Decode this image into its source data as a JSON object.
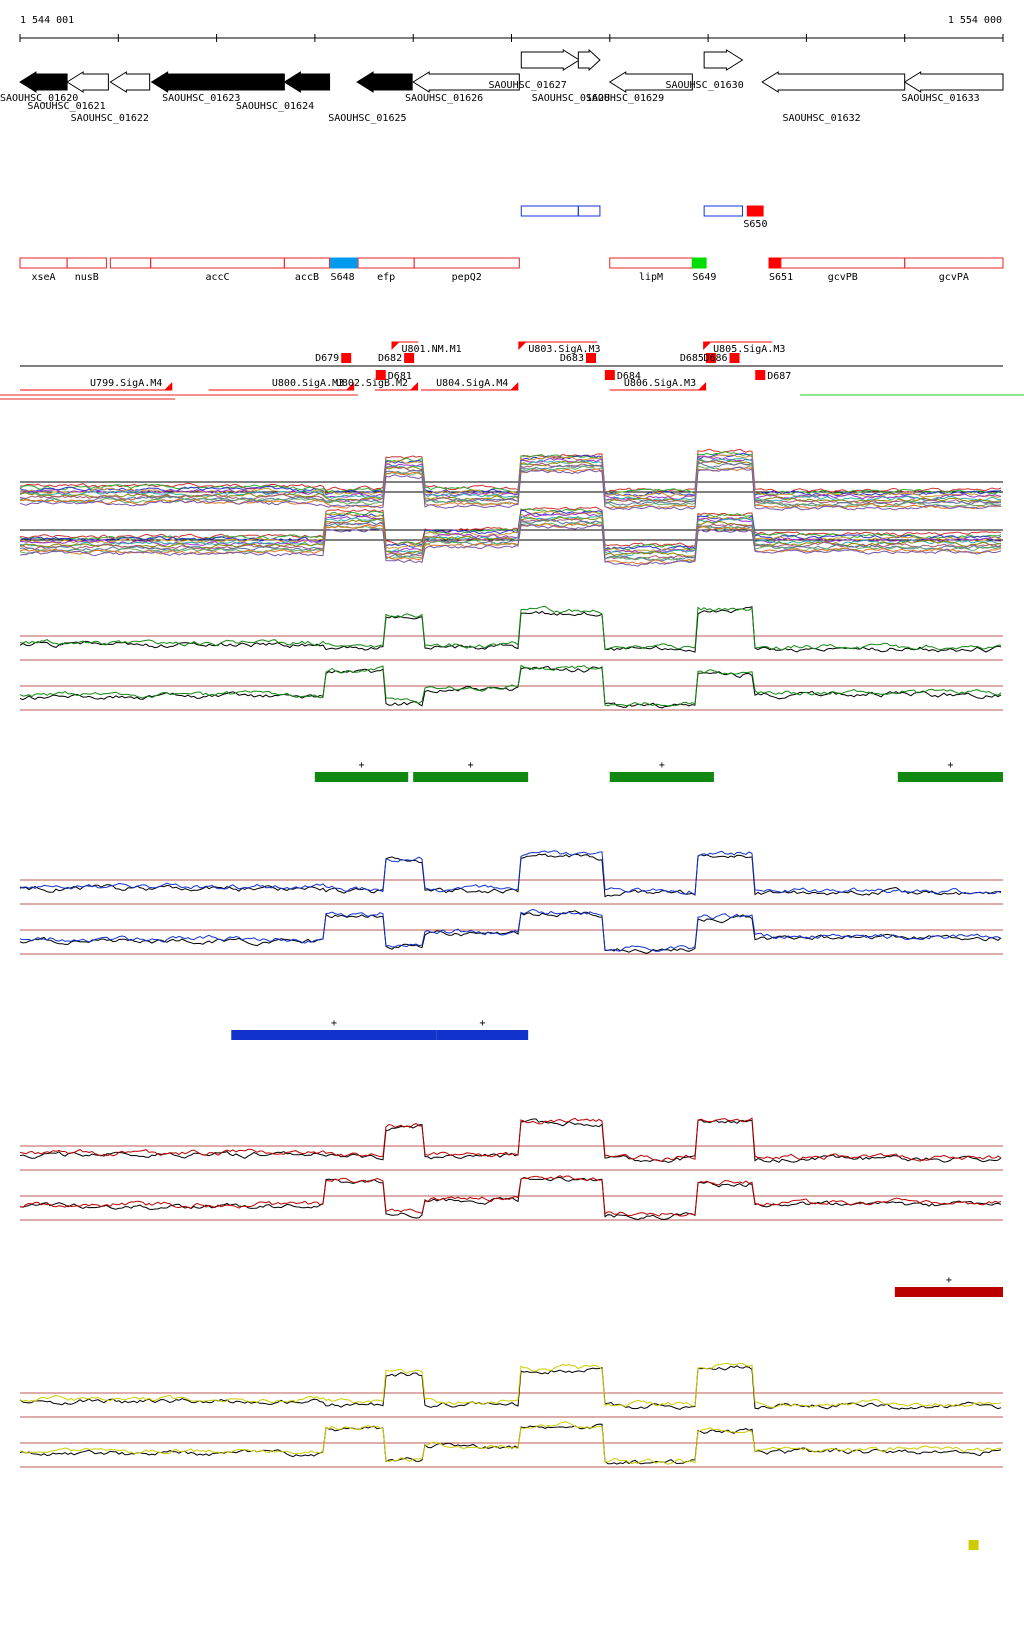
{
  "coordinates": {
    "start_label": "1 544 001",
    "end_label": "1 554 000",
    "range": [
      1544001,
      1554000
    ]
  },
  "colors": {
    "black": "#000000",
    "gene_red": "#ee2222",
    "utr_red": "#ff0000",
    "sRNA_blue": "#0099ee",
    "sRNA_green": "#00dd00",
    "track_blue": "#1133dd",
    "green": "#118811",
    "blue": "#1133cc",
    "red": "#bb0000",
    "yellow": "#cccc00",
    "threshold": "#aa2222"
  },
  "genes": [
    {
      "id": "SAOUHSC_01620",
      "start": 1544001,
      "end": 1544480,
      "strand": "-",
      "filled": true
    },
    {
      "id": "SAOUHSC_01621",
      "start": 1544480,
      "end": 1544900,
      "strand": "-",
      "filled": false
    },
    {
      "id": "SAOUHSC_01622",
      "start": 1544920,
      "end": 1545320,
      "strand": "-",
      "filled": false
    },
    {
      "id": "SAOUHSC_01623",
      "start": 1545340,
      "end": 1546690,
      "strand": "-",
      "filled": true
    },
    {
      "id": "SAOUHSC_01624",
      "start": 1546690,
      "end": 1547150,
      "strand": "-",
      "filled": true
    },
    {
      "id": "SAOUHSC_01625",
      "start": 1547430,
      "end": 1547990,
      "strand": "-",
      "filled": true
    },
    {
      "id": "SAOUHSC_01626",
      "start": 1548000,
      "end": 1549080,
      "strand": "-",
      "filled": false
    },
    {
      "id": "SAOUHSC_01627",
      "start": 1549100,
      "end": 1549690,
      "strand": "+",
      "filled": false
    },
    {
      "id": "SAOUHSC_01628",
      "start": 1549680,
      "end": 1549900,
      "strand": "+",
      "filled": false
    },
    {
      "id": "SAOUHSC_01629",
      "start": 1550000,
      "end": 1550840,
      "strand": "-",
      "filled": false
    },
    {
      "id": "SAOUHSC_01630",
      "start": 1550960,
      "end": 1551350,
      "strand": "+",
      "filled": false
    },
    {
      "id": "SAOUHSC_01632",
      "start": 1551550,
      "end": 1553000,
      "strand": "-",
      "filled": false
    },
    {
      "id": "SAOUHSC_01633",
      "start": 1553000,
      "end": 1554000,
      "strand": "-",
      "filled": false
    }
  ],
  "gene_labels": [
    {
      "text": "SAOUHSC_01620",
      "pos": 1544001,
      "row": 0
    },
    {
      "text": "SAOUHSC_01621",
      "pos": 1544280,
      "row": 1
    },
    {
      "text": "SAOUHSC_01622",
      "pos": 1544720,
      "row": 2
    },
    {
      "text": "SAOUHSC_01623",
      "pos": 1545650,
      "row": 0
    },
    {
      "text": "SAOUHSC_01624",
      "pos": 1546400,
      "row": 1
    },
    {
      "text": "SAOUHSC_01625",
      "pos": 1547340,
      "row": 2
    },
    {
      "text": "SAOUHSC_01626",
      "pos": 1548120,
      "row": 0
    },
    {
      "text": "SAOUHSC_01627",
      "pos": 1548970,
      "row": -1
    },
    {
      "text": "SAOUHSC_01628",
      "pos": 1549410,
      "row": 0
    },
    {
      "text": "SAOUHSC_01629",
      "pos": 1549960,
      "row": 0
    },
    {
      "text": "SAOUHSC_01630",
      "pos": 1550770,
      "row": -1
    },
    {
      "text": "SAOUHSC_01632",
      "pos": 1551960,
      "row": 2
    },
    {
      "text": "SAOUHSC_01633",
      "pos": 1553170,
      "row": 0
    }
  ],
  "annotation_boxes_upper": [
    {
      "start": 1549100,
      "end": 1549680,
      "color": "track_blue"
    },
    {
      "start": 1549680,
      "end": 1549900,
      "color": "track_blue"
    },
    {
      "start": 1550960,
      "end": 1551350,
      "color": "track_blue"
    },
    {
      "start": 1551400,
      "end": 1551560,
      "color": "utr_red",
      "filled": true,
      "label": "S650"
    }
  ],
  "annotation_boxes": [
    {
      "start": 1544001,
      "end": 1544480,
      "label": "xseA"
    },
    {
      "start": 1544480,
      "end": 1544880,
      "label": "nusB"
    },
    {
      "start": 1544920,
      "end": 1545330,
      "label": ""
    },
    {
      "start": 1545330,
      "end": 1546690,
      "label": "accC"
    },
    {
      "start": 1546690,
      "end": 1547150,
      "label": "accB"
    },
    {
      "start": 1547160,
      "end": 1547430,
      "label": "S648",
      "fill": "sRNA_blue"
    },
    {
      "start": 1547440,
      "end": 1548010,
      "label": "efp"
    },
    {
      "start": 1548010,
      "end": 1549080,
      "label": "pepQ2"
    },
    {
      "start": 1550000,
      "end": 1550840,
      "label": "lipM"
    },
    {
      "start": 1550840,
      "end": 1550980,
      "label": "S649",
      "fill": "sRNA_green"
    },
    {
      "start": 1551620,
      "end": 1551740,
      "label": "S651",
      "fill": "utr_red"
    },
    {
      "start": 1551740,
      "end": 1553000,
      "label": "gcvPB"
    },
    {
      "start": 1553000,
      "end": 1554000,
      "label": "gcvPA"
    }
  ],
  "utr_upper": [
    {
      "start": 1547250,
      "end": 1547370,
      "label": "D679"
    },
    {
      "start": 1547780,
      "end": 1548050,
      "label": "U801.NM.M1"
    },
    {
      "start": 1547900,
      "end": 1548010,
      "label": "D682"
    },
    {
      "start": 1549070,
      "end": 1549870,
      "label": "U803.SigA.M3"
    },
    {
      "start": 1549760,
      "end": 1549860,
      "label": "D683"
    },
    {
      "start": 1550950,
      "end": 1551650,
      "label": "U805.SigA.M3"
    },
    {
      "start": 1551010,
      "end": 1551080,
      "label": "D685"
    },
    {
      "start": 1551180,
      "end": 1551320,
      "label": "D686"
    }
  ],
  "utr_lower": [
    {
      "start": 1544001,
      "end": 1545550,
      "label": "U799.SigA.M4"
    },
    {
      "start": 1545920,
      "end": 1547400,
      "label": "U800.SigA.M3"
    },
    {
      "start": 1547610,
      "end": 1548050,
      "label": "U802.SigB.M2"
    },
    {
      "start": 1547620,
      "end": 1547760,
      "label": "D681"
    },
    {
      "start": 1548080,
      "end": 1549070,
      "label": "U804.SigA.M4"
    },
    {
      "start": 1549950,
      "end": 1550060,
      "label": "D684"
    },
    {
      "start": 1550000,
      "end": 1550980,
      "label": "U806.SigA.M3"
    },
    {
      "start": 1551480,
      "end": 1551580,
      "label": "D687"
    }
  ],
  "expression_segments": [
    {
      "start": 1544001,
      "end": 1547100,
      "top": 0.9,
      "bot": 0.95
    },
    {
      "start": 1547100,
      "end": 1547720,
      "top": 0.97,
      "bot": 0.4
    },
    {
      "start": 1547720,
      "end": 1548100,
      "top": 0.3,
      "bot": 1.1
    },
    {
      "start": 1548100,
      "end": 1549080,
      "top": 0.95,
      "bot": 0.8
    },
    {
      "start": 1549080,
      "end": 1549950,
      "top": 0.2,
      "bot": 0.35
    },
    {
      "start": 1549950,
      "end": 1550880,
      "top": 1.0,
      "bot": 1.15
    },
    {
      "start": 1550880,
      "end": 1551460,
      "top": 0.15,
      "bot": 0.45
    },
    {
      "start": 1551460,
      "end": 1554000,
      "top": 1.0,
      "bot": 0.9
    }
  ],
  "condition_tracks": [
    {
      "name": "green",
      "color": "green",
      "bars": [
        {
          "start": 1547000,
          "end": 1547950,
          "label": "+"
        },
        {
          "start": 1548000,
          "end": 1549170,
          "label": "+"
        },
        {
          "start": 1550000,
          "end": 1551060,
          "label": "+"
        },
        {
          "start": 1552930,
          "end": 1554000,
          "label": "+"
        }
      ]
    },
    {
      "name": "blue",
      "color": "blue",
      "bars": [
        {
          "start": 1546150,
          "end": 1548240,
          "label": "+"
        },
        {
          "start": 1548240,
          "end": 1549170,
          "label": "+"
        }
      ]
    },
    {
      "name": "red",
      "color": "red",
      "bars": [
        {
          "start": 1552900,
          "end": 1554000,
          "label": "+"
        }
      ]
    },
    {
      "name": "yellow",
      "color": "yellow",
      "bars": [
        {
          "start": 1553650,
          "end": 1553750,
          "label": ""
        }
      ]
    }
  ]
}
